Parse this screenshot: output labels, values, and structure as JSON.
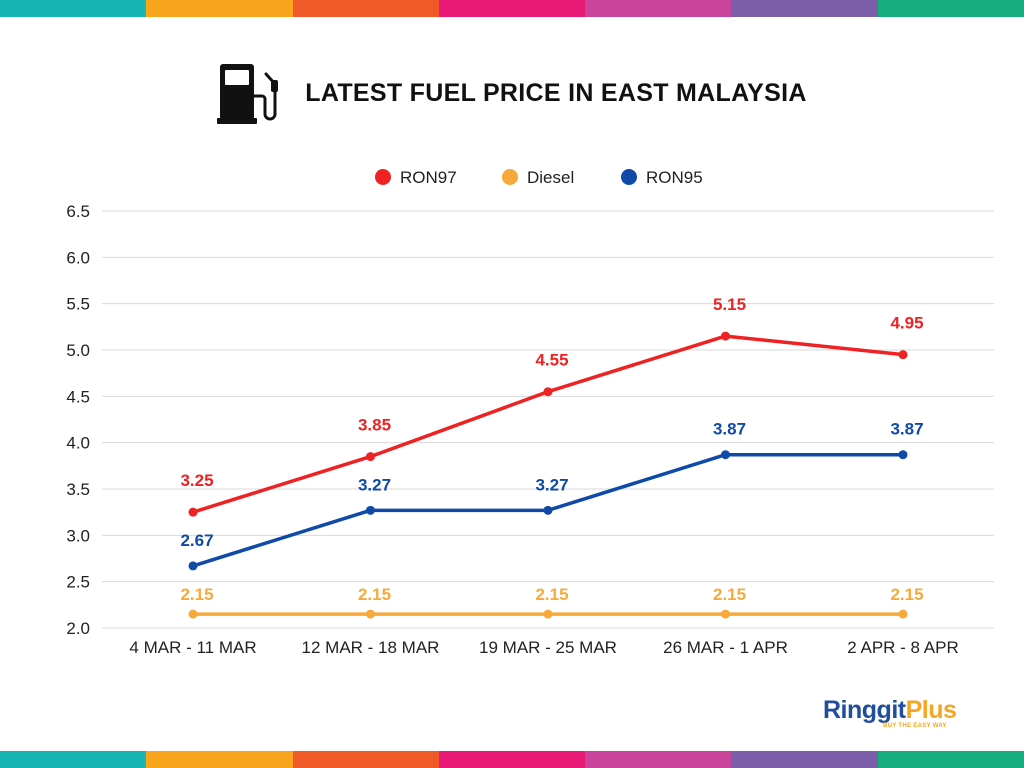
{
  "stripe_colors": [
    "#18b5b5",
    "#f8a51d",
    "#f05a28",
    "#ea1b77",
    "#c9449a",
    "#7b5ea7",
    "#15ae7c"
  ],
  "header": {
    "icon": "fuel-pump-icon",
    "title": "LATEST FUEL PRICE IN EAST MALAYSIA"
  },
  "brand": {
    "name_main": "Ringgit",
    "name_accent": "Plus",
    "tagline": "BUY THE EASY WAY",
    "color_main": "#1f4e9c",
    "color_accent": "#f5a623"
  },
  "chart_data": {
    "type": "line",
    "title": "LATEST FUEL PRICE IN EAST MALAYSIA",
    "xlabel": "",
    "ylabel": "",
    "categories": [
      "4 MAR - 11 MAR",
      "12 MAR - 18 MAR",
      "19 MAR - 25 MAR",
      "26 MAR - 1 APR",
      "2 APR - 8 APR"
    ],
    "ylim": [
      2.0,
      6.5
    ],
    "yticks": [
      "2.0",
      "2.5",
      "3.0",
      "3.5",
      "4.0",
      "4.5",
      "5.0",
      "5.5",
      "6.0",
      "6.5"
    ],
    "grid": true,
    "legend_position": "top-center",
    "series": [
      {
        "name": "RON97",
        "color": "#ee2222",
        "values": [
          3.25,
          3.85,
          4.55,
          5.15,
          4.95
        ],
        "labels": [
          "3.25",
          "3.85",
          "4.55",
          "5.15",
          "4.95"
        ]
      },
      {
        "name": "Diesel",
        "color": "#f7a93b",
        "values": [
          2.15,
          2.15,
          2.15,
          2.15,
          2.15
        ],
        "labels": [
          "2.15",
          "2.15",
          "2.15",
          "2.15",
          "2.15"
        ]
      },
      {
        "name": "RON95",
        "color": "#0f4aa8",
        "values": [
          2.67,
          3.27,
          3.27,
          3.87,
          3.87
        ],
        "labels": [
          "2.67",
          "3.27",
          "3.27",
          "3.87",
          "3.87"
        ]
      }
    ]
  }
}
